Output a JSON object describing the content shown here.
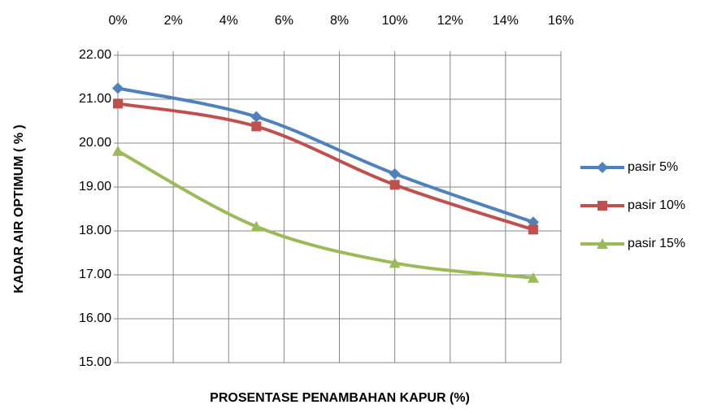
{
  "chart_data": {
    "type": "line",
    "x_label": "PROSENTASE PENAMBAHAN KAPUR (%)",
    "y_label": "KADAR AIR OPTIMUM ( % )",
    "x": [
      0,
      5,
      10,
      15
    ],
    "series": [
      {
        "name": "pasir 5%",
        "color": "#4f81bd",
        "marker": "diamond",
        "values": [
          21.25,
          20.6,
          19.3,
          18.2
        ]
      },
      {
        "name": "pasir 10%",
        "color": "#c0504d",
        "marker": "square",
        "values": [
          20.9,
          20.38,
          19.05,
          18.03
        ]
      },
      {
        "name": "pasir 15%",
        "color": "#9bbb59",
        "marker": "triangle",
        "values": [
          19.82,
          18.1,
          17.27,
          16.93
        ]
      }
    ],
    "xlim": [
      0,
      16
    ],
    "xticks": [
      {
        "value": 0,
        "label": "0%"
      },
      {
        "value": 2,
        "label": "2%"
      },
      {
        "value": 4,
        "label": "4%"
      },
      {
        "value": 6,
        "label": "6%"
      },
      {
        "value": 8,
        "label": "8%"
      },
      {
        "value": 10,
        "label": "10%"
      },
      {
        "value": 12,
        "label": "12%"
      },
      {
        "value": 14,
        "label": "14%"
      },
      {
        "value": 16,
        "label": "16%"
      }
    ],
    "ylim": [
      15,
      22
    ],
    "yticks": [
      {
        "value": 15,
        "label": "15.00"
      },
      {
        "value": 16,
        "label": "16.00"
      },
      {
        "value": 17,
        "label": "17.00"
      },
      {
        "value": 18,
        "label": "18.00"
      },
      {
        "value": 19,
        "label": "19.00"
      },
      {
        "value": 20,
        "label": "20.00"
      },
      {
        "value": 21,
        "label": "21.00"
      },
      {
        "value": 22,
        "label": "22.00"
      }
    ],
    "grid": true,
    "x_axis_position": "top",
    "legend": "right"
  }
}
